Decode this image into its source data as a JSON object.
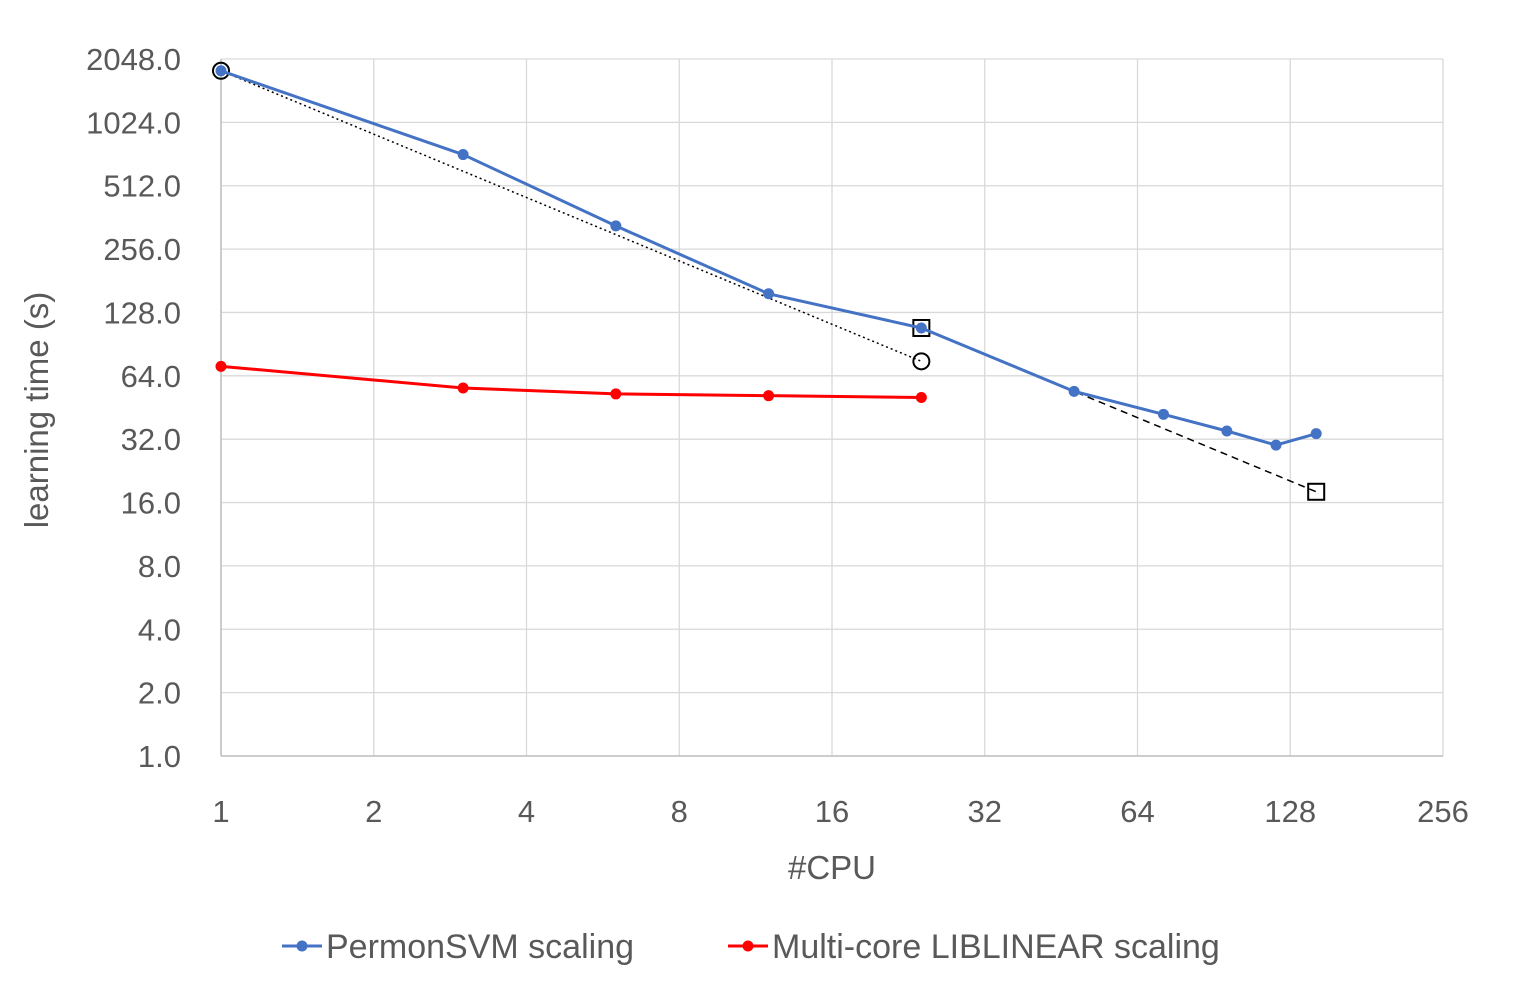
{
  "chart_data": {
    "type": "line",
    "xlabel": "#CPU",
    "ylabel": "learning time (s)",
    "x_scale": "log2",
    "y_scale": "log2",
    "xlim": [
      1,
      256
    ],
    "ylim": [
      1,
      2048
    ],
    "x_ticks": [
      "1",
      "2",
      "4",
      "8",
      "16",
      "32",
      "64",
      "128",
      "256"
    ],
    "y_ticks": [
      "1.0",
      "2.0",
      "4.0",
      "8.0",
      "16.0",
      "32.0",
      "64.0",
      "128.0",
      "256.0",
      "512.0",
      "1024.0",
      "2048.0"
    ],
    "grid": true,
    "legend_position": "bottom",
    "series": [
      {
        "name": "PermonSVM scaling",
        "color": "#4472c4",
        "style": "solid",
        "marker": "dot",
        "x": [
          1,
          3,
          6,
          12,
          24,
          48,
          72,
          96,
          120,
          144
        ],
        "y": [
          1800,
          720,
          330,
          157,
          108,
          54,
          42,
          35,
          30,
          34
        ]
      },
      {
        "name": "Multi-core LIBLINEAR scaling",
        "color": "#ff0000",
        "style": "solid",
        "marker": "dot",
        "x": [
          1,
          3,
          6,
          12,
          24
        ],
        "y": [
          71,
          56,
          52.5,
          51.5,
          50.5
        ]
      }
    ],
    "reference_lines": [
      {
        "style": "dotted",
        "color": "#000000",
        "marker": "circle",
        "x": [
          1,
          24
        ],
        "y": [
          1800,
          75
        ]
      },
      {
        "style": "dashed",
        "color": "#000000",
        "marker": "square",
        "x": [
          24,
          144
        ],
        "y": [
          108,
          18
        ]
      }
    ]
  }
}
